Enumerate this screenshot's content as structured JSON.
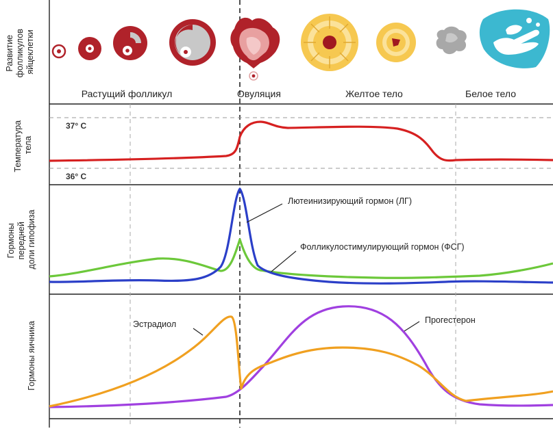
{
  "rows": {
    "follicle": [
      "Развитие",
      "фолликулов",
      "яйцеклетки"
    ],
    "temperature": [
      "Температура",
      "тела"
    ],
    "pituitary": [
      "Гормоны",
      "передней",
      "доли гипофиза"
    ],
    "ovarian": [
      "Гормоны яичника"
    ]
  },
  "stages": {
    "growing": "Растущий фолликул",
    "ovulation": "Овуляция",
    "corpus_luteum": "Желтое тело",
    "corpus_albicans": "Белое тело"
  },
  "temperature_ticks": {
    "high": "37° С",
    "low": "36° С"
  },
  "annotations": {
    "lh": "Лютеинизирующий гормон (ЛГ)",
    "fsh": "Фолликулостимулирующий гормон (ФСГ)",
    "estradiol": "Эстрадиол",
    "progesterone": "Прогестерон"
  },
  "colors": {
    "temperature": "#d62020",
    "lh": "#2b3fc8",
    "fsh": "#6cc83a",
    "estradiol": "#f0a020",
    "progesterone": "#a040e0",
    "follicle": "#b0222a",
    "corpus_luteum": "#f6c850",
    "corpus_albicans": "#a8a8a8",
    "hands": "#3cb8d0"
  }
}
